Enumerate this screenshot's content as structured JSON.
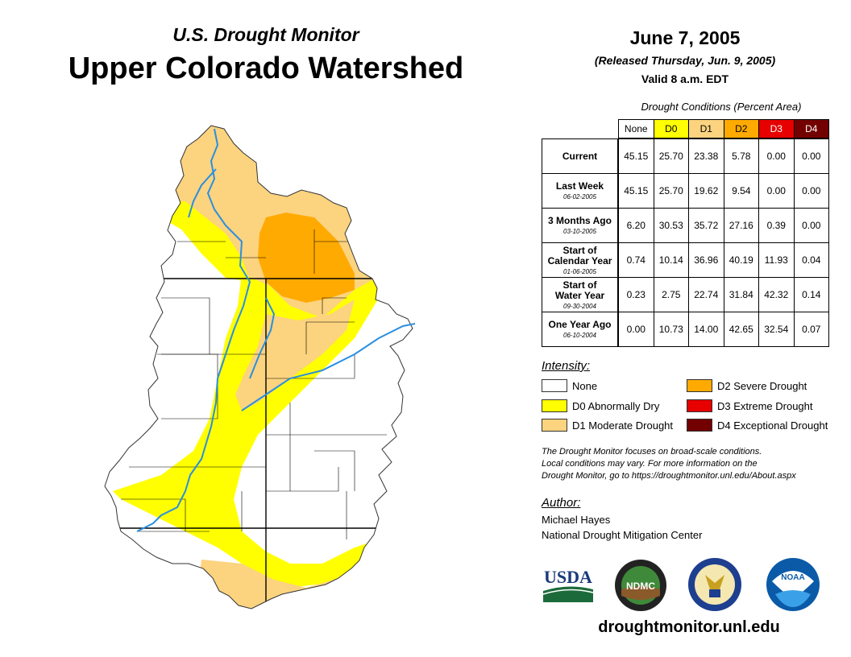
{
  "header": {
    "subtitle": "U.S. Drought Monitor",
    "title": "Upper Colorado Watershed",
    "date": "June 7, 2005",
    "released": "(Released Thursday, Jun. 9, 2005)",
    "valid": "Valid 8 a.m. EDT"
  },
  "table": {
    "caption": "Drought Conditions (Percent Area)",
    "columns": [
      "None",
      "D0",
      "D1",
      "D2",
      "D3",
      "D4"
    ],
    "column_colors": [
      "#ffffff",
      "#ffff00",
      "#fcd37f",
      "#ffaa00",
      "#e60000",
      "#730000"
    ],
    "column_text_colors": [
      "#000000",
      "#000000",
      "#000000",
      "#000000",
      "#ffffff",
      "#ffffff"
    ],
    "rows": [
      {
        "label": [
          "Current"
        ],
        "date": "",
        "values": [
          "45.15",
          "25.70",
          "23.38",
          "5.78",
          "0.00",
          "0.00"
        ]
      },
      {
        "label": [
          "Last Week"
        ],
        "date": "06-02-2005",
        "values": [
          "45.15",
          "25.70",
          "19.62",
          "9.54",
          "0.00",
          "0.00"
        ]
      },
      {
        "label": [
          "3 Months Ago"
        ],
        "date": "03-10-2005",
        "values": [
          "6.20",
          "30.53",
          "35.72",
          "27.16",
          "0.39",
          "0.00"
        ]
      },
      {
        "label": [
          "Start of",
          "Calendar Year"
        ],
        "date": "01-06-2005",
        "values": [
          "0.74",
          "10.14",
          "36.96",
          "40.19",
          "11.93",
          "0.04"
        ]
      },
      {
        "label": [
          "Start of",
          "Water Year"
        ],
        "date": "09-30-2004",
        "values": [
          "0.23",
          "2.75",
          "22.74",
          "31.84",
          "42.32",
          "0.14"
        ]
      },
      {
        "label": [
          "One Year Ago"
        ],
        "date": "06-10-2004",
        "values": [
          "0.00",
          "10.73",
          "14.00",
          "42.65",
          "32.54",
          "0.07"
        ]
      }
    ]
  },
  "legend": {
    "title": "Intensity:",
    "items": [
      {
        "label": "None",
        "color": "#ffffff"
      },
      {
        "label": "D0 Abnormally Dry",
        "color": "#ffff00"
      },
      {
        "label": "D1 Moderate Drought",
        "color": "#fcd37f"
      },
      {
        "label": "D2 Severe Drought",
        "color": "#ffaa00"
      },
      {
        "label": "D3 Extreme Drought",
        "color": "#e60000"
      },
      {
        "label": "D4 Exceptional Drought",
        "color": "#730000"
      }
    ]
  },
  "note": [
    "The Drought Monitor focuses on broad-scale conditions.",
    "Local conditions may vary. For more information on the",
    "Drought Monitor, go to https://droughtmonitor.unl.edu/About.aspx"
  ],
  "author": {
    "label": "Author:",
    "name": "Michael Hayes",
    "org": "National Drought Mitigation Center"
  },
  "logos": {
    "usda": "USDA",
    "ndmc": "NDMC",
    "noaa": "NOAA"
  },
  "url": "droughtmonitor.unl.edu",
  "map_colors": {
    "d0": "#ffff00",
    "d1": "#fcd37f",
    "d2": "#ffaa00",
    "river": "#2a8fe0"
  }
}
